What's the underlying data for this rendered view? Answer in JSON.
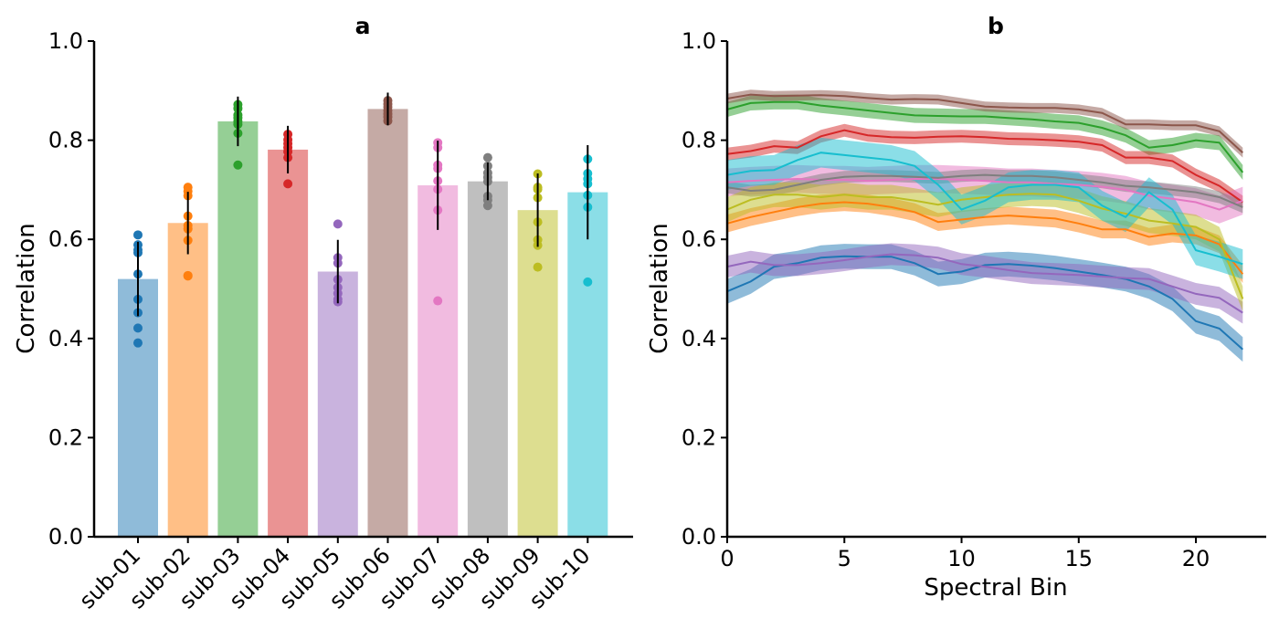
{
  "chart_data": [
    {
      "panel": "a",
      "type": "bar",
      "title": "a",
      "xlabel": "",
      "ylabel": "Correlation",
      "ylim": [
        0,
        1.0
      ],
      "yticks": [
        "0.0",
        "0.2",
        "0.4",
        "0.6",
        "0.8",
        "1.0"
      ],
      "grid": false,
      "categories": [
        "sub-01",
        "sub-02",
        "sub-03",
        "sub-04",
        "sub-05",
        "sub-06",
        "sub-07",
        "sub-08",
        "sub-09",
        "sub-10"
      ],
      "values": [
        0.52,
        0.633,
        0.838,
        0.781,
        0.535,
        0.863,
        0.709,
        0.717,
        0.659,
        0.695
      ],
      "error": [
        0.075,
        0.063,
        0.05,
        0.048,
        0.064,
        0.033,
        0.09,
        0.038,
        0.074,
        0.095
      ],
      "points": [
        [
          0.609,
          0.589,
          0.579,
          0.573,
          0.53,
          0.479,
          0.452,
          0.421,
          0.391
        ],
        [
          0.705,
          0.697,
          0.688,
          0.647,
          0.628,
          0.621,
          0.598,
          0.527,
          0.526
        ],
        [
          0.872,
          0.864,
          0.851,
          0.845,
          0.838,
          0.832,
          0.814,
          0.75
        ],
        [
          0.812,
          0.801,
          0.793,
          0.785,
          0.777,
          0.765,
          0.712
        ],
        [
          0.631,
          0.563,
          0.552,
          0.519,
          0.503,
          0.491,
          0.479,
          0.474
        ],
        [
          0.88,
          0.873,
          0.867,
          0.86,
          0.853,
          0.847,
          0.839
        ],
        [
          0.795,
          0.785,
          0.75,
          0.743,
          0.718,
          0.701,
          0.659,
          0.476
        ],
        [
          0.765,
          0.748,
          0.734,
          0.725,
          0.717,
          0.687,
          0.679,
          0.668
        ],
        [
          0.732,
          0.705,
          0.701,
          0.684,
          0.635,
          0.599,
          0.588,
          0.544
        ],
        [
          0.762,
          0.733,
          0.722,
          0.712,
          0.689,
          0.665,
          0.514
        ]
      ],
      "colors": [
        "#1f77b4",
        "#ff7f0e",
        "#2ca02c",
        "#d62728",
        "#9467bd",
        "#8c564b",
        "#e377c2",
        "#7f7f7f",
        "#bcbd22",
        "#17becf"
      ]
    },
    {
      "panel": "b",
      "type": "line",
      "title": "b",
      "xlabel": "Spectral Bin",
      "ylabel": "Correlation",
      "xlim": [
        0,
        23
      ],
      "ylim": [
        0,
        1.0
      ],
      "xticks": [
        "0",
        "5",
        "10",
        "15",
        "20"
      ],
      "yticks": [
        "0.0",
        "0.2",
        "0.4",
        "0.6",
        "0.8",
        "1.0"
      ],
      "grid": false,
      "x": [
        0,
        1,
        2,
        3,
        4,
        5,
        6,
        7,
        8,
        9,
        10,
        11,
        12,
        13,
        14,
        15,
        16,
        17,
        18,
        19,
        20,
        21,
        22
      ],
      "series": [
        {
          "color": "#1f77b4",
          "band": 0.025,
          "values": [
            0.495,
            0.515,
            0.545,
            0.552,
            0.563,
            0.566,
            0.565,
            0.565,
            0.552,
            0.53,
            0.535,
            0.548,
            0.55,
            0.547,
            0.542,
            0.535,
            0.528,
            0.52,
            0.505,
            0.48,
            0.435,
            0.42,
            0.378
          ]
        },
        {
          "color": "#ff7f0e",
          "band": 0.018,
          "values": [
            0.632,
            0.645,
            0.655,
            0.665,
            0.672,
            0.675,
            0.672,
            0.665,
            0.655,
            0.635,
            0.64,
            0.645,
            0.648,
            0.645,
            0.642,
            0.632,
            0.62,
            0.62,
            0.605,
            0.612,
            0.608,
            0.59,
            0.53
          ]
        },
        {
          "color": "#2ca02c",
          "band": 0.015,
          "values": [
            0.862,
            0.875,
            0.877,
            0.877,
            0.87,
            0.865,
            0.86,
            0.855,
            0.85,
            0.849,
            0.848,
            0.848,
            0.845,
            0.842,
            0.838,
            0.835,
            0.825,
            0.81,
            0.785,
            0.79,
            0.8,
            0.795,
            0.735
          ]
        },
        {
          "color": "#d62728",
          "band": 0.013,
          "values": [
            0.772,
            0.778,
            0.788,
            0.785,
            0.808,
            0.82,
            0.81,
            0.806,
            0.805,
            0.807,
            0.808,
            0.806,
            0.803,
            0.802,
            0.8,
            0.797,
            0.79,
            0.765,
            0.765,
            0.758,
            0.73,
            0.708,
            0.675
          ]
        },
        {
          "color": "#9467bd",
          "band": 0.022,
          "values": [
            0.545,
            0.555,
            0.548,
            0.548,
            0.552,
            0.558,
            0.565,
            0.57,
            0.568,
            0.563,
            0.55,
            0.545,
            0.538,
            0.532,
            0.53,
            0.528,
            0.525,
            0.522,
            0.52,
            0.505,
            0.49,
            0.482,
            0.452
          ]
        },
        {
          "color": "#8c564b",
          "band": 0.01,
          "values": [
            0.884,
            0.892,
            0.889,
            0.89,
            0.891,
            0.889,
            0.885,
            0.882,
            0.883,
            0.882,
            0.875,
            0.868,
            0.866,
            0.865,
            0.865,
            0.862,
            0.855,
            0.832,
            0.832,
            0.83,
            0.83,
            0.818,
            0.775
          ]
        },
        {
          "color": "#e377c2",
          "band": 0.028,
          "values": [
            0.715,
            0.718,
            0.72,
            0.722,
            0.72,
            0.72,
            0.718,
            0.72,
            0.722,
            0.722,
            0.72,
            0.718,
            0.715,
            0.715,
            0.712,
            0.71,
            0.706,
            0.7,
            0.688,
            0.682,
            0.675,
            0.66,
            0.678
          ]
        },
        {
          "color": "#7f7f7f",
          "band": 0.012,
          "values": [
            0.705,
            0.698,
            0.7,
            0.71,
            0.72,
            0.726,
            0.728,
            0.728,
            0.726,
            0.724,
            0.728,
            0.73,
            0.728,
            0.728,
            0.725,
            0.72,
            0.715,
            0.708,
            0.705,
            0.7,
            0.695,
            0.685,
            0.665
          ]
        },
        {
          "color": "#bcbd22",
          "band": 0.025,
          "values": [
            0.66,
            0.68,
            0.69,
            0.69,
            0.685,
            0.69,
            0.685,
            0.685,
            0.678,
            0.67,
            0.68,
            0.685,
            0.69,
            0.692,
            0.69,
            0.678,
            0.662,
            0.652,
            0.638,
            0.632,
            0.625,
            0.6,
            0.48
          ]
        },
        {
          "color": "#17becf",
          "band": 0.03,
          "values": [
            0.73,
            0.738,
            0.74,
            0.76,
            0.775,
            0.77,
            0.765,
            0.76,
            0.748,
            0.71,
            0.66,
            0.678,
            0.705,
            0.71,
            0.71,
            0.705,
            0.668,
            0.645,
            0.695,
            0.66,
            0.578,
            0.565,
            0.55
          ]
        }
      ]
    }
  ]
}
